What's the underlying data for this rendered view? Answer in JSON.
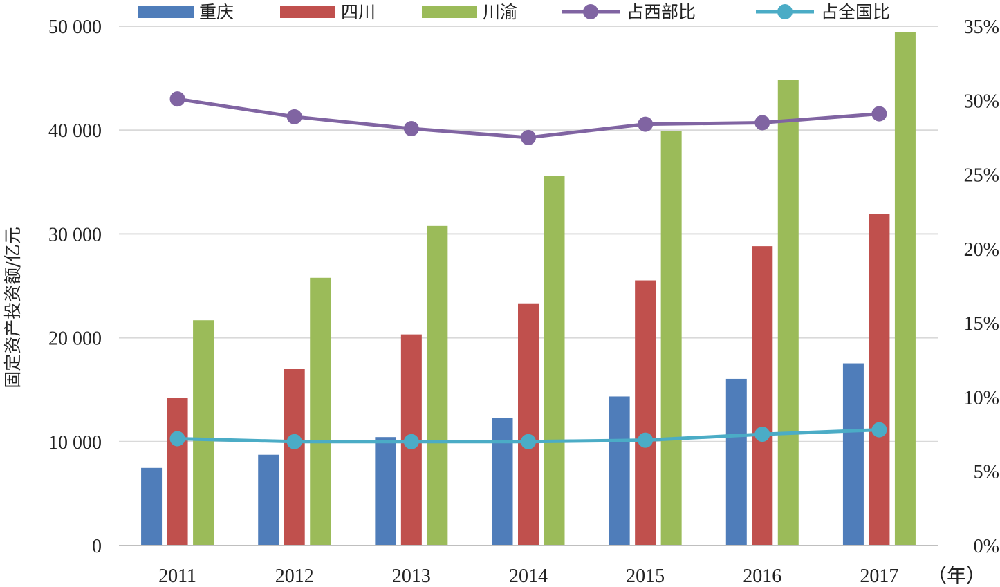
{
  "chart_data": {
    "type": "bar",
    "categories": [
      "2011",
      "2012",
      "2013",
      "2014",
      "2015",
      "2016",
      "2017"
    ],
    "x_unit": "（年）",
    "ylabel": "固定资产投资额/亿元",
    "ylim": [
      0,
      50000
    ],
    "y_ticks": [
      "0",
      "10 000",
      "20 000",
      "30 000",
      "40 000",
      "50 000"
    ],
    "y2lim": [
      0,
      35
    ],
    "y2_ticks": [
      "0%",
      "5%",
      "10%",
      "15%",
      "20%",
      "25%",
      "30%",
      "35%"
    ],
    "grid": true,
    "legend_position": "top",
    "series": [
      {
        "name": "重庆",
        "type": "bar",
        "color": "#4F7DBA",
        "values": [
          7470,
          8740,
          10440,
          12290,
          14350,
          16050,
          17540
        ]
      },
      {
        "name": "四川",
        "type": "bar",
        "color": "#C0504D",
        "values": [
          14220,
          17040,
          20330,
          23320,
          25530,
          28820,
          31900
        ]
      },
      {
        "name": "川渝",
        "type": "bar",
        "color": "#9BBB59",
        "values": [
          21690,
          25780,
          30770,
          35610,
          39880,
          44870,
          49440
        ]
      },
      {
        "name": "占西部比",
        "type": "line",
        "axis": "right",
        "color": "#8064A2",
        "values": [
          30.1,
          28.9,
          28.1,
          27.5,
          28.4,
          28.5,
          29.1
        ]
      },
      {
        "name": "占全国比",
        "type": "line",
        "axis": "right",
        "color": "#4BACC6",
        "values": [
          7.2,
          7.0,
          7.0,
          7.0,
          7.1,
          7.5,
          7.8
        ]
      }
    ]
  }
}
